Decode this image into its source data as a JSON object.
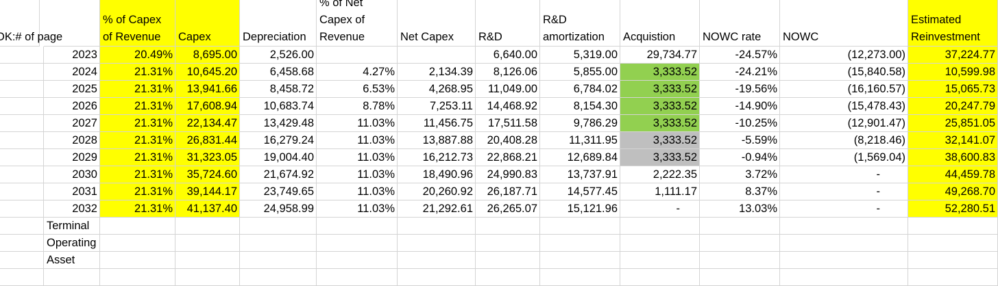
{
  "sheet": {
    "headers": [
      "OK:# of page",
      "",
      "% of Capex\nof Revenue",
      "Capex",
      "Depreciation",
      "% of Net\nCapex of\nRevenue",
      "Net Capex",
      "R&D",
      "R&D\namortization",
      "Acquistion",
      "NOWC rate",
      "NOWC",
      "Estimated\nReinvestment"
    ],
    "rows": [
      [
        "",
        "2023",
        "20.49%",
        "8,695.00",
        "2,526.00",
        "",
        "",
        "6,640.00",
        "5,319.00",
        "29,734.77",
        "-24.57%",
        "(12,273.00)",
        "37,224.77"
      ],
      [
        "",
        "2024",
        "21.31%",
        "10,645.20",
        "6,458.68",
        "4.27%",
        "2,134.39",
        "8,126.06",
        "5,855.00",
        "3,333.52",
        "-24.21%",
        "(15,840.58)",
        "10,599.98"
      ],
      [
        "",
        "2025",
        "21.31%",
        "13,941.66",
        "8,458.72",
        "6.53%",
        "4,268.95",
        "11,049.00",
        "6,784.02",
        "3,333.52",
        "-19.56%",
        "(16,160.57)",
        "15,065.73"
      ],
      [
        "",
        "2026",
        "21.31%",
        "17,608.94",
        "10,683.74",
        "8.78%",
        "7,253.11",
        "14,468.92",
        "8,154.30",
        "3,333.52",
        "-14.90%",
        "(15,478.43)",
        "20,247.79"
      ],
      [
        "",
        "2027",
        "21.31%",
        "22,134.47",
        "13,429.48",
        "11.03%",
        "11,456.75",
        "17,511.58",
        "9,786.29",
        "3,333.52",
        "-10.25%",
        "(12,901.47)",
        "25,851.05"
      ],
      [
        "",
        "2028",
        "21.31%",
        "26,831.44",
        "16,279.24",
        "11.03%",
        "13,887.88",
        "20,408.28",
        "11,311.95",
        "3,333.52",
        "-5.59%",
        "(8,218.46)",
        "32,141.07"
      ],
      [
        "",
        "2029",
        "21.31%",
        "31,323.05",
        "19,004.40",
        "11.03%",
        "16,212.73",
        "22,868.21",
        "12,689.84",
        "3,333.52",
        "-0.94%",
        "(1,569.04)",
        "38,600.83"
      ],
      [
        "",
        "2030",
        "21.31%",
        "35,724.60",
        "21,674.92",
        "11.03%",
        "18,490.96",
        "24,990.83",
        "13,737.91",
        "2,222.35",
        "3.72%",
        "-",
        "44,459.78"
      ],
      [
        "",
        "2031",
        "21.31%",
        "39,144.17",
        "23,749.65",
        "11.03%",
        "20,260.92",
        "26,187.71",
        "14,577.45",
        "1,111.17",
        "8.37%",
        "-",
        "49,268.70"
      ],
      [
        "",
        "2032",
        "21.31%",
        "41,137.40",
        "24,958.99",
        "11.03%",
        "21,292.61",
        "26,265.07",
        "15,121.96",
        "-",
        "13.03%",
        "-",
        "52,280.51"
      ],
      [
        "",
        "Terminal",
        "",
        "",
        "",
        "",
        "",
        "",
        "",
        "",
        "",
        "",
        ""
      ],
      [
        "",
        "Operating",
        "",
        "",
        "",
        "",
        "",
        "",
        "",
        "",
        "",
        "",
        ""
      ],
      [
        "",
        "Asset",
        "",
        "",
        "",
        "",
        "",
        "",
        "",
        "",
        "",
        "",
        ""
      ],
      [
        "",
        "",
        "",
        "",
        "",
        "",
        "",
        "",
        "",
        "",
        "",
        "",
        ""
      ]
    ],
    "fills": {
      "yellow": "#ffff00",
      "green": "#92d050",
      "gray": "#bfbfbf"
    }
  }
}
